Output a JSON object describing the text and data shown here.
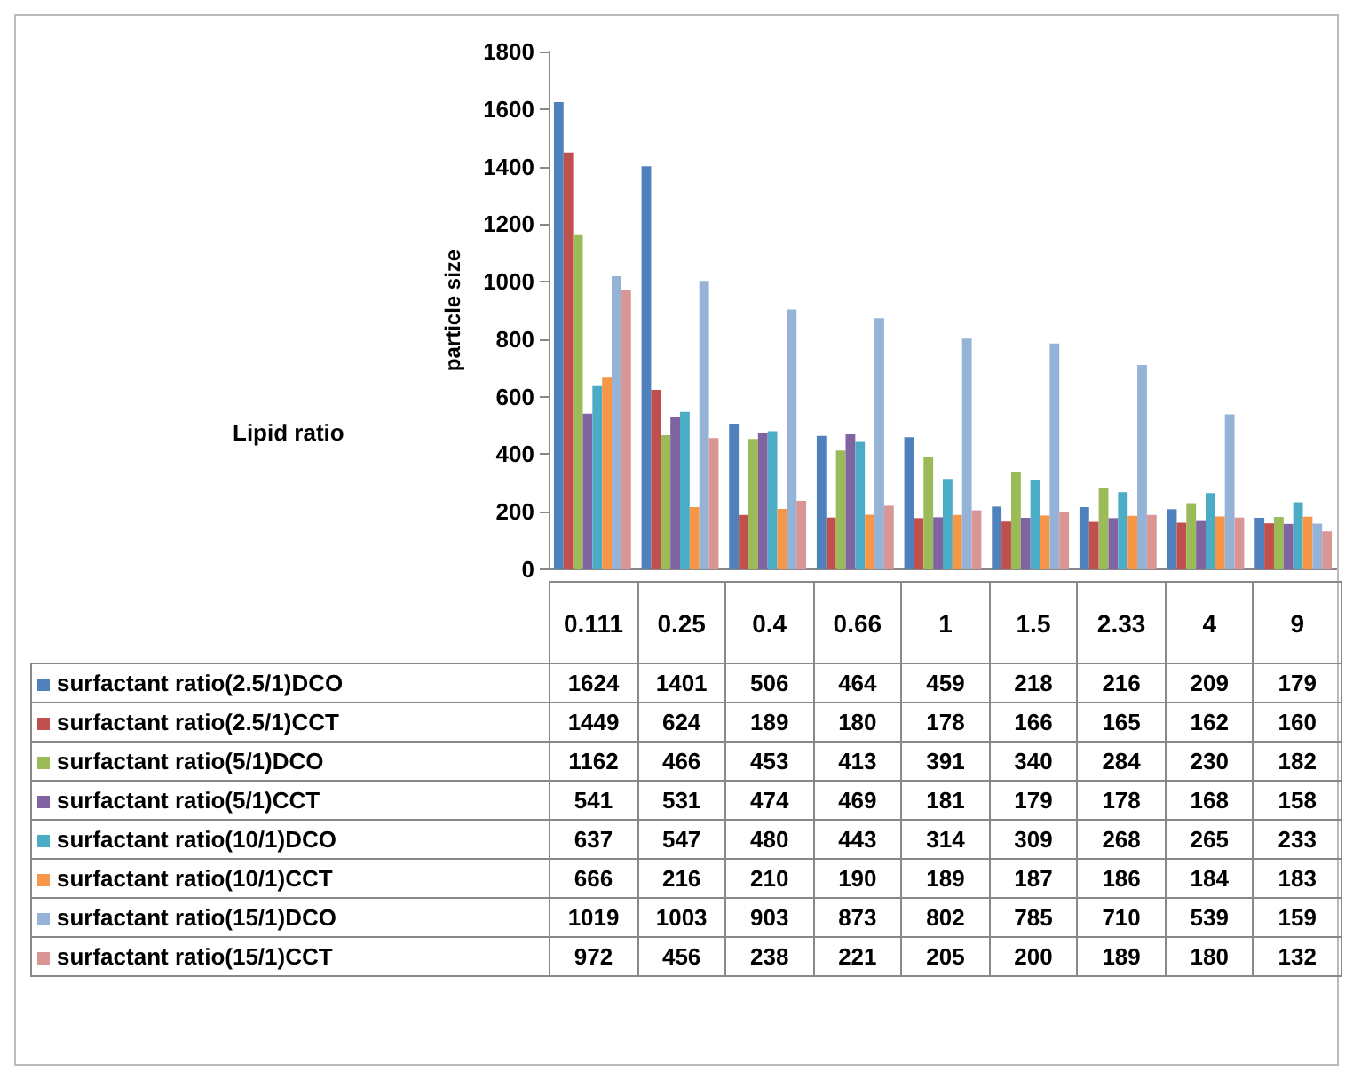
{
  "chart_data": {
    "type": "bar",
    "annotations": [
      "Lipid ratio"
    ],
    "ylabel": "particle size",
    "categories": [
      "0.111",
      "0.25",
      "0.4",
      "0.66",
      "1",
      "1.5",
      "2.33",
      "4",
      "9"
    ],
    "series": [
      {
        "name": "surfactant ratio(2.5/1)DCO",
        "color": "#4f81bd",
        "values": [
          1624,
          1401,
          506,
          464,
          459,
          218,
          216,
          209,
          179
        ]
      },
      {
        "name": "surfactant ratio(2.5/1)CCT",
        "color": "#c0504d",
        "values": [
          1449,
          624,
          189,
          180,
          178,
          166,
          165,
          162,
          160
        ]
      },
      {
        "name": "surfactant ratio(5/1)DCO",
        "color": "#9bbb59",
        "values": [
          1162,
          466,
          453,
          413,
          391,
          340,
          284,
          230,
          182
        ]
      },
      {
        "name": "surfactant ratio(5/1)CCT",
        "color": "#8064a2",
        "values": [
          541,
          531,
          474,
          469,
          181,
          179,
          178,
          168,
          158
        ]
      },
      {
        "name": "surfactant ratio(10/1)DCO",
        "color": "#4bacc6",
        "values": [
          637,
          547,
          480,
          443,
          314,
          309,
          268,
          265,
          233
        ]
      },
      {
        "name": "surfactant ratio(10/1)CCT",
        "color": "#f79646",
        "values": [
          666,
          216,
          210,
          190,
          189,
          187,
          186,
          184,
          183
        ]
      },
      {
        "name": "surfactant ratio(15/1)DCO",
        "color": "#95b3d7",
        "values": [
          1019,
          1003,
          903,
          873,
          802,
          785,
          710,
          539,
          159
        ]
      },
      {
        "name": "surfactant ratio(15/1)CCT",
        "color": "#d99694",
        "values": [
          972,
          456,
          238,
          221,
          205,
          200,
          189,
          180,
          132
        ]
      }
    ],
    "ylim": [
      0,
      1800
    ],
    "yticks": [
      0,
      200,
      400,
      600,
      800,
      1000,
      1200,
      1400,
      1600,
      1800
    ],
    "grid": false,
    "legend": "bottom",
    "data_labels": true
  }
}
